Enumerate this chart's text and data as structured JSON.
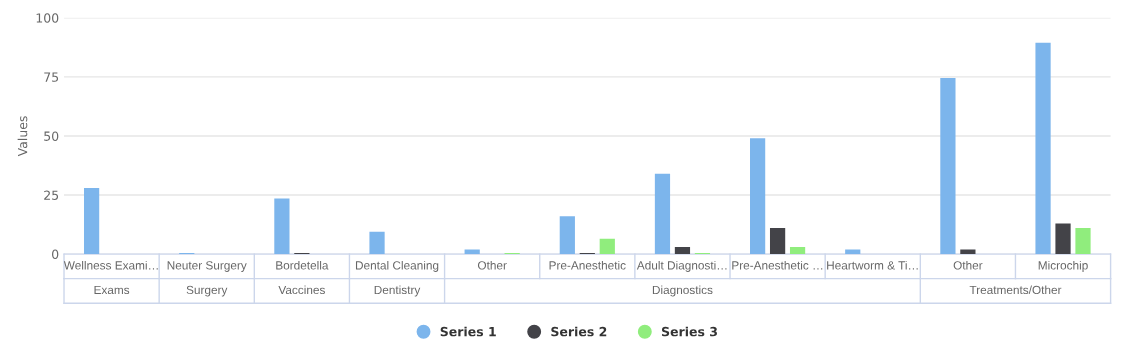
{
  "chart_data": {
    "type": "bar",
    "ylabel": "Values",
    "categories": [
      "Wellness Exami…",
      "Neuter Surgery",
      "Bordetella",
      "Dental Cleaning",
      "Other",
      "Pre-Anesthetic",
      "Adult Diagnosti…",
      "Pre-Anesthetic …",
      "Heartworm & Ti…",
      "Other",
      "Microchip"
    ],
    "series": [
      {
        "name": "Series 1",
        "color": "#7cb5ec",
        "values": [
          28,
          0.5,
          23.5,
          9.5,
          2,
          16,
          34,
          49,
          2,
          74.5,
          89.5
        ]
      },
      {
        "name": "Series 2",
        "color": "#434348",
        "values": [
          0,
          0,
          0.5,
          0,
          0,
          0.5,
          3,
          11,
          0,
          2,
          13
        ]
      },
      {
        "name": "Series 3",
        "color": "#90ed7d",
        "values": [
          0,
          0,
          0,
          0,
          0.5,
          6.5,
          0.5,
          3,
          0,
          0,
          11
        ]
      }
    ],
    "annotations": [
      "Exams",
      "Surgery",
      "Vaccines",
      "Dentistry",
      "Diagnostics",
      "Treatments/Other"
    ],
    "ylim": [
      0,
      100
    ],
    "yticks": [
      0,
      25,
      50,
      75,
      100
    ],
    "grid": "y",
    "legend": "bottom",
    "marker": "circle"
  }
}
